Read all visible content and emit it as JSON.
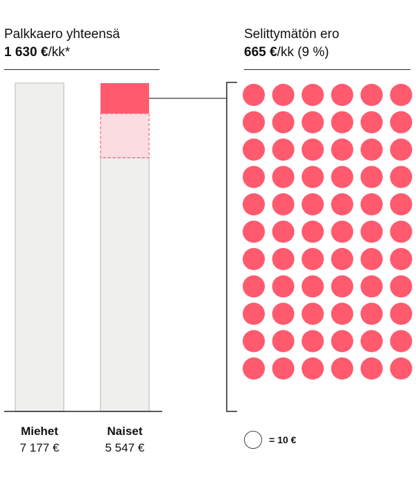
{
  "left_header": {
    "label": "Palkkaero yhteensä",
    "value_bold": "1 630 €",
    "value_suffix": "/kk*"
  },
  "right_header": {
    "label": "Selittymätön ero",
    "value_bold": "665 €",
    "value_suffix": "/kk (9 %)"
  },
  "colors": {
    "bar_fill": "#efefed",
    "bar_stroke": "#cfccc6",
    "unexplained": "#ff5a6e",
    "explained": "#fbdde1",
    "explained_stroke": "#ff5a6e",
    "dot": "#ff5a6e"
  },
  "chart_data": {
    "type": "bar",
    "categories": [
      "Miehet",
      "Naiset"
    ],
    "values": [
      7177,
      5547
    ],
    "value_labels": [
      "7 177 €",
      "5 547 €"
    ],
    "ylim": [
      0,
      7177
    ],
    "gap_total": 1630,
    "gap_unexplained": 665,
    "gap_explained": 965,
    "unit_chart": {
      "dots": 66,
      "columns": 6,
      "unit_value": 10,
      "legend_label": "= 10 €"
    }
  }
}
